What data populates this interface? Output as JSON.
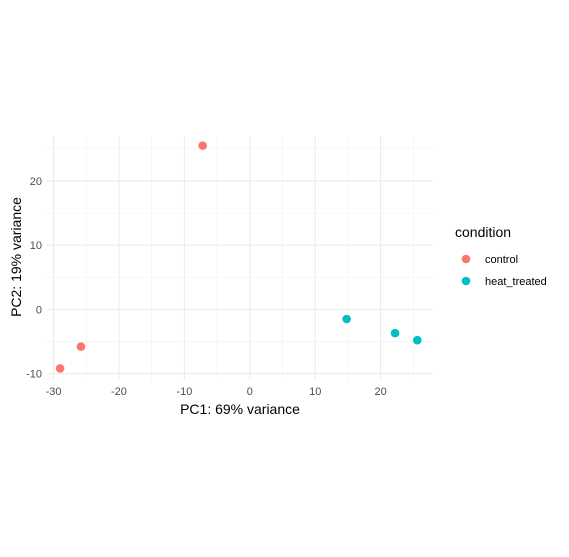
{
  "chart_data": {
    "type": "scatter",
    "title": "",
    "xlabel": "PC1: 69% variance",
    "ylabel": "PC2: 19% variance",
    "xlim": [
      -31,
      28
    ],
    "ylim": [
      -11,
      27
    ],
    "xticks": [
      -30,
      -20,
      -10,
      0,
      10,
      20
    ],
    "yticks": [
      -10,
      0,
      10,
      20
    ],
    "grid": true,
    "legend_title": "condition",
    "legend_position": "right",
    "series": [
      {
        "name": "control",
        "color": "#F8766D",
        "points": [
          {
            "x": -7.2,
            "y": 25.5
          },
          {
            "x": -25.8,
            "y": -5.8
          },
          {
            "x": -29.0,
            "y": -9.2
          }
        ]
      },
      {
        "name": "heat_treated",
        "color": "#00BFC4",
        "points": [
          {
            "x": 14.8,
            "y": -1.5
          },
          {
            "x": 22.2,
            "y": -3.7
          },
          {
            "x": 25.6,
            "y": -4.8
          }
        ]
      }
    ]
  }
}
